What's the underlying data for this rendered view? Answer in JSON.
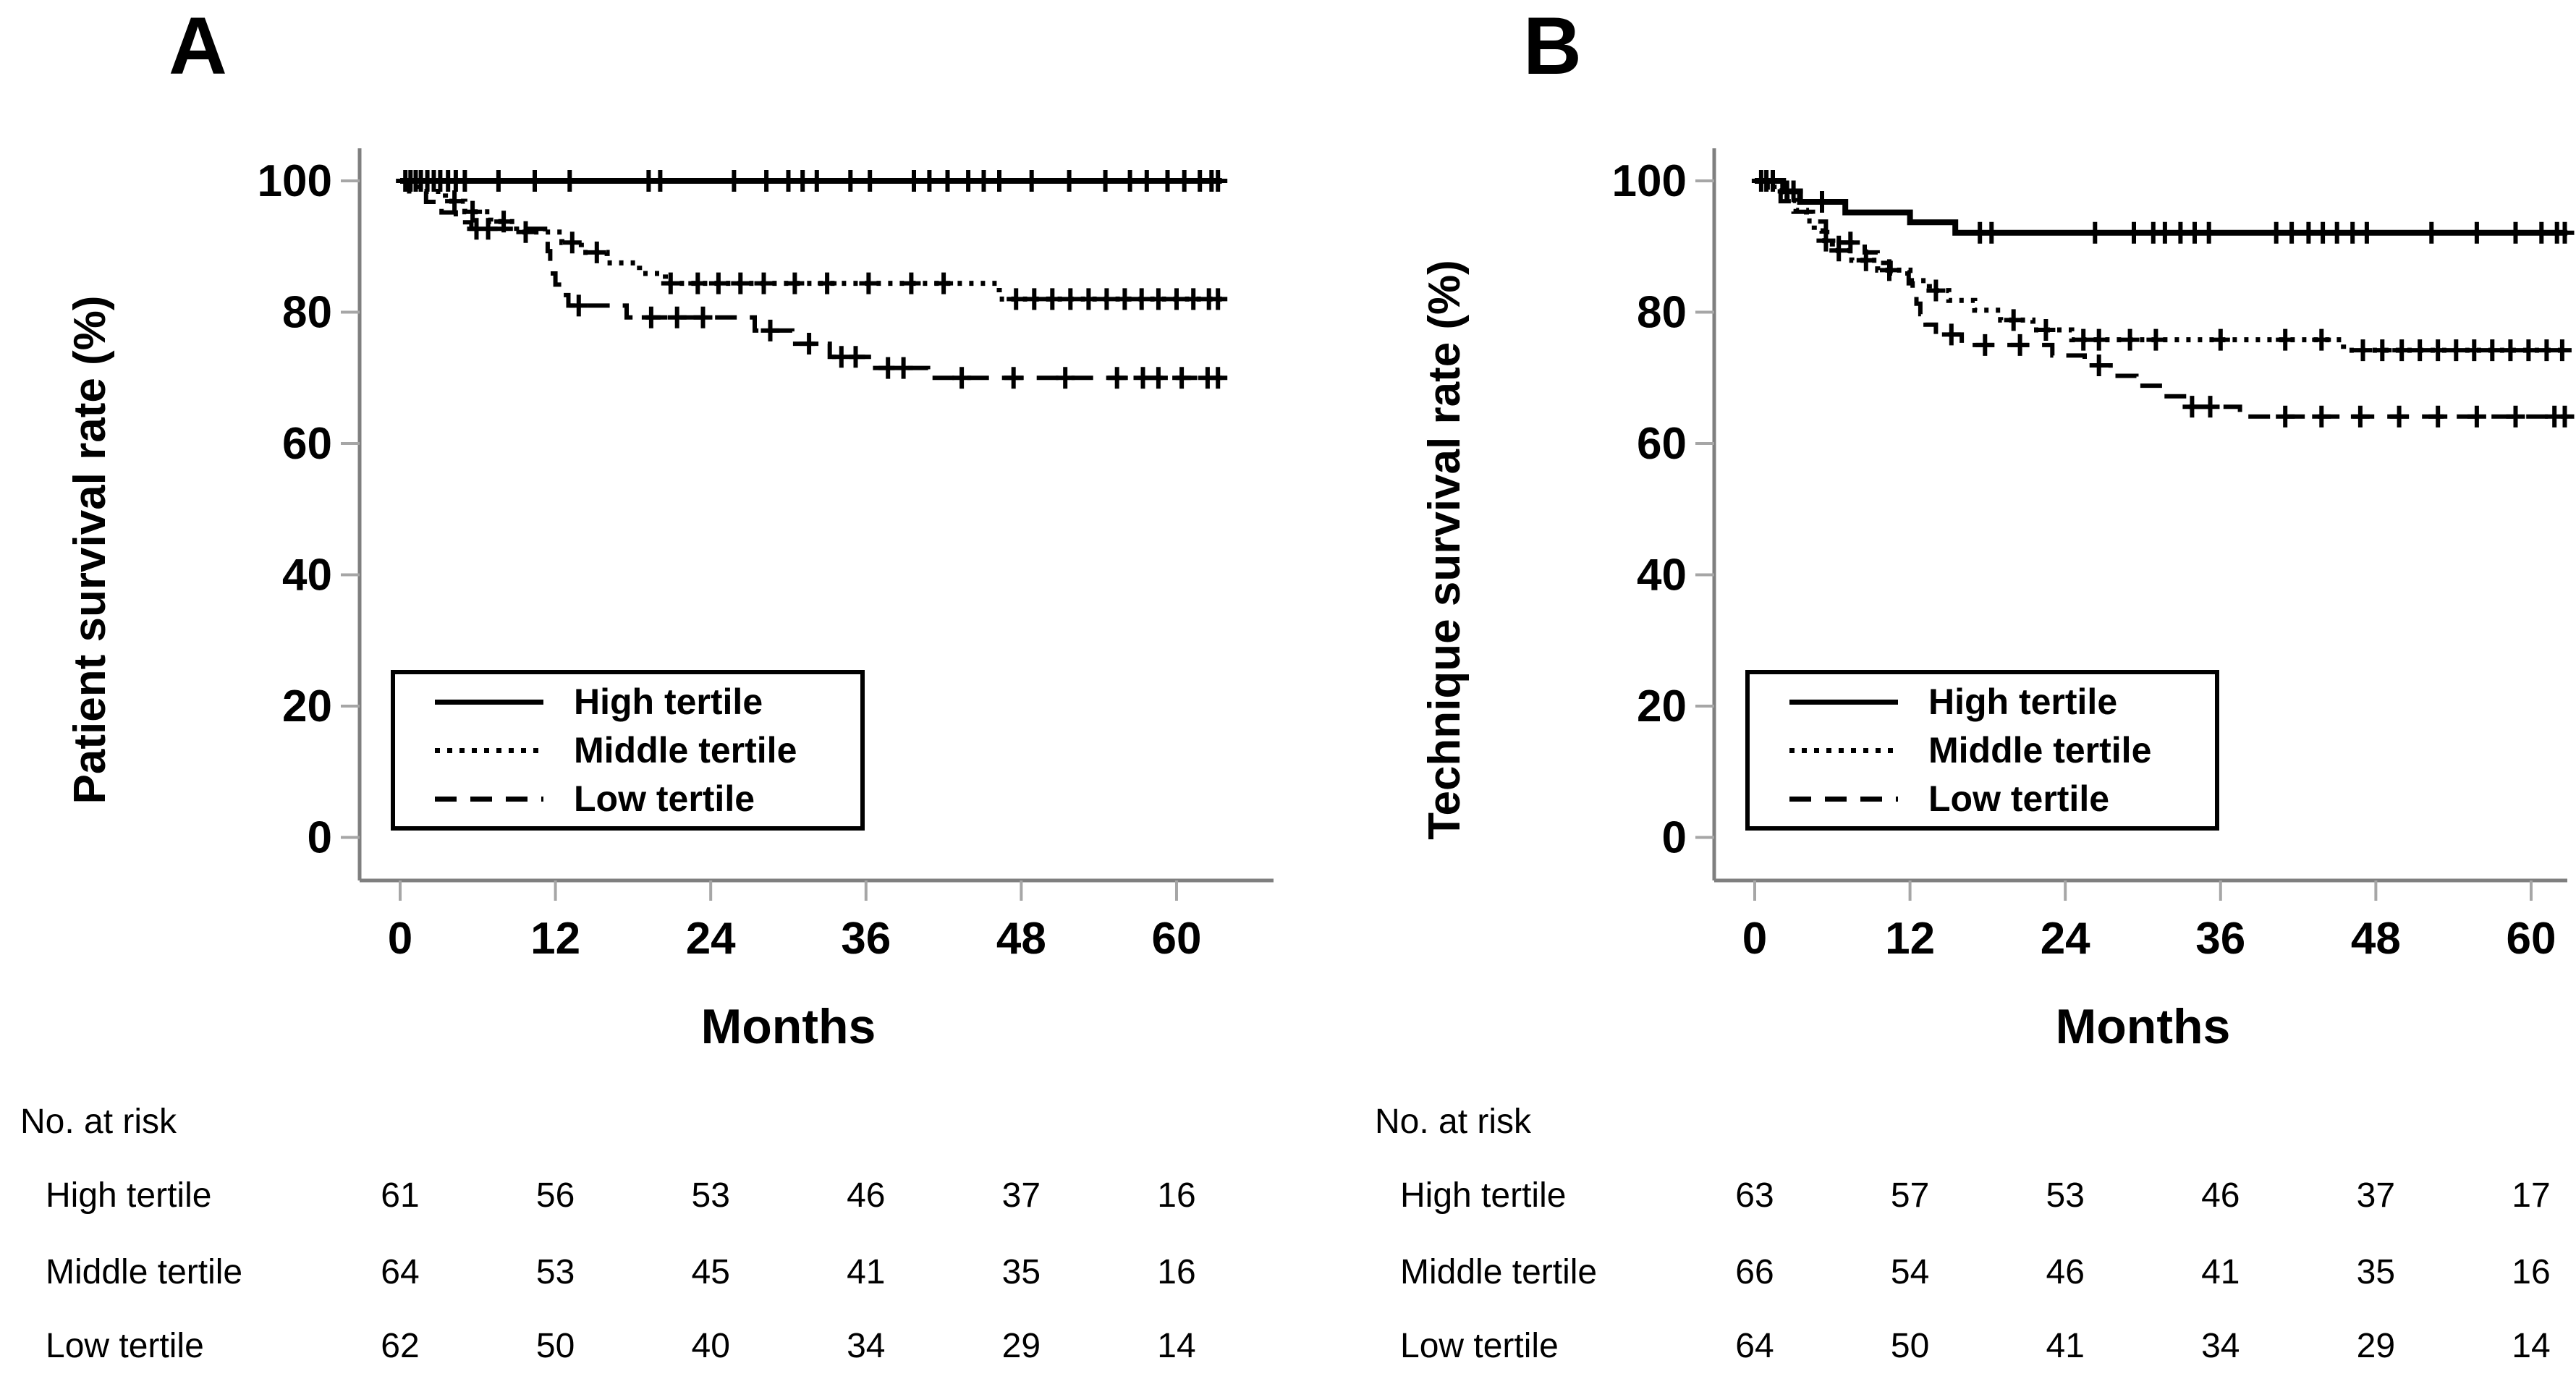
{
  "colors": {
    "background": "#ffffff",
    "curve": "#000000",
    "text": "#000000",
    "axis_line": "#7f7f7f",
    "tick_mark": "#a6a6a6"
  },
  "chart_data": [
    {
      "type": "line",
      "subtype": "kaplan-meier-step",
      "panel_label": "A",
      "ylabel": "Patient survival rate (%)",
      "xlabel": "Months",
      "xticks": [
        0,
        12,
        24,
        36,
        48,
        60
      ],
      "yticks": [
        100,
        80,
        60,
        40,
        20,
        0
      ],
      "xlim": [
        0,
        64
      ],
      "ylim": [
        0,
        100
      ],
      "grid": false,
      "legend_position": "lower-left",
      "legend": [
        {
          "label": "High tertile",
          "style": "solid"
        },
        {
          "label": "Middle tertile",
          "style": "dotted"
        },
        {
          "label": "Low tertile",
          "style": "dashed"
        }
      ],
      "series": [
        {
          "name": "High tertile",
          "style": "solid",
          "end_month": 63.5,
          "steps": [
            [
              0,
              100
            ]
          ],
          "censors": [
            0.4,
            0.8,
            1.2,
            1.6,
            2.1,
            2.6,
            3.1,
            3.7,
            4.3,
            5.0,
            7.6,
            10.4,
            13.1,
            19.2,
            20.1,
            25.8,
            28.3,
            30.0,
            31.1,
            32.2,
            34.8,
            36.3,
            39.7,
            40.9,
            42.3,
            43.9,
            45.1,
            46.3,
            48.8,
            51.7,
            54.5,
            56.4,
            57.7,
            59.3,
            60.6,
            61.8,
            62.7,
            63.2
          ]
        },
        {
          "name": "Middle tertile",
          "style": "dotted",
          "end_month": 63.5,
          "steps": [
            [
              0,
              100
            ],
            [
              1.5,
              98.4
            ],
            [
              3.5,
              96.9
            ],
            [
              5,
              95.3
            ],
            [
              7,
              93.8
            ],
            [
              9,
              92.2
            ],
            [
              12.5,
              90.6
            ],
            [
              14,
              89.1
            ],
            [
              16,
              87.5
            ],
            [
              18.5,
              85.9
            ],
            [
              20.5,
              84.4
            ],
            [
              46.3,
              82.0
            ]
          ],
          "censors": [
            4.2,
            5.6,
            8.0,
            9.7,
            13.3,
            15.2,
            20.9,
            23.0,
            24.6,
            26.3,
            28.1,
            30.5,
            33.0,
            36.2,
            39.5,
            42.0,
            47.6,
            49.0,
            50.4,
            51.8,
            53.2,
            54.6,
            56.0,
            57.3,
            58.6,
            60.0,
            61.3,
            62.5,
            63.2
          ]
        },
        {
          "name": "Low tertile",
          "style": "dashed",
          "end_month": 63.5,
          "steps": [
            [
              0,
              100
            ],
            [
              0.7,
              98.4
            ],
            [
              2,
              96.8
            ],
            [
              3.2,
              95.2
            ],
            [
              4.3,
              93.7
            ],
            [
              5.5,
              92.7
            ],
            [
              11.2,
              91.0
            ],
            [
              11.4,
              89.3
            ],
            [
              11.6,
              87.6
            ],
            [
              11.8,
              85.9
            ],
            [
              12.0,
              84.2
            ],
            [
              12.6,
              82.6
            ],
            [
              13.0,
              81.0
            ],
            [
              17.5,
              79.2
            ],
            [
              27.4,
              77.2
            ],
            [
              30.3,
              75.2
            ],
            [
              33.2,
              73.2
            ],
            [
              36.5,
              71.5
            ],
            [
              40.8,
              70.0
            ]
          ],
          "censors": [
            5.9,
            6.8,
            13.8,
            19.4,
            21.4,
            23.4,
            28.6,
            31.6,
            34.1,
            35.2,
            37.7,
            38.9,
            43.4,
            47.4,
            51.4,
            55.4,
            57.4,
            58.6,
            60.4,
            62.4,
            63.2
          ]
        }
      ],
      "risk_table": {
        "title": "No. at risk",
        "time_points": [
          0,
          12,
          24,
          36,
          48,
          60
        ],
        "rows": [
          {
            "label": "High tertile",
            "values": [
              "61",
              "56",
              "53",
              "46",
              "37",
              "16"
            ]
          },
          {
            "label": "Middle tertile",
            "values": [
              "64",
              "53",
              "45",
              "41",
              "35",
              "16"
            ]
          },
          {
            "label": "Low tertile",
            "values": [
              "62",
              "50",
              "40",
              "34",
              "29",
              "14"
            ]
          }
        ]
      }
    },
    {
      "type": "line",
      "subtype": "kaplan-meier-step",
      "panel_label": "B",
      "ylabel": "Technique survival rate (%)",
      "xlabel": "Months",
      "xticks": [
        0,
        12,
        24,
        36,
        48,
        60
      ],
      "yticks": [
        100,
        80,
        60,
        40,
        20,
        0
      ],
      "xlim": [
        0,
        63
      ],
      "ylim": [
        0,
        100
      ],
      "grid": false,
      "legend_position": "lower-left",
      "legend": [
        {
          "label": "High tertile",
          "style": "solid"
        },
        {
          "label": "Middle tertile",
          "style": "dotted"
        },
        {
          "label": "Low tertile",
          "style": "dashed"
        }
      ],
      "series": [
        {
          "name": "High tertile",
          "style": "solid",
          "end_month": 62.8,
          "steps": [
            [
              0,
              100
            ],
            [
              2.2,
              98.4
            ],
            [
              3.5,
              96.8
            ],
            [
              7,
              95.2
            ],
            [
              12,
              93.7
            ],
            [
              15.5,
              92.1
            ]
          ],
          "censors": [
            0.5,
            0.9,
            1.4,
            2.5,
            3.0,
            5.2,
            17.4,
            18.3,
            26.3,
            29.3,
            30.8,
            31.7,
            32.9,
            34.0,
            35.1,
            40.3,
            41.5,
            42.8,
            43.9,
            45.0,
            46.2,
            47.3,
            52.3,
            55.8,
            58.8,
            60.8,
            62.0,
            62.6
          ]
        },
        {
          "name": "Middle tertile",
          "style": "dotted",
          "end_month": 62.8,
          "steps": [
            [
              0,
              100
            ],
            [
              1.5,
              98.5
            ],
            [
              2.5,
              97.0
            ],
            [
              3.2,
              95.5
            ],
            [
              4,
              93.9
            ],
            [
              4.6,
              92.4
            ],
            [
              5.2,
              90.9
            ],
            [
              6,
              89.4
            ],
            [
              7.5,
              87.9
            ],
            [
              9.5,
              86.4
            ],
            [
              12,
              84.8
            ],
            [
              13.5,
              83.3
            ],
            [
              15,
              81.8
            ],
            [
              17,
              80.3
            ],
            [
              19,
              78.8
            ],
            [
              21.5,
              77.3
            ],
            [
              24.5,
              75.8
            ],
            [
              45.5,
              74.2
            ]
          ],
          "censors": [
            5.5,
            6.5,
            8.6,
            10.4,
            14.0,
            20.0,
            22.5,
            25.4,
            26.6,
            29.0,
            31.0,
            36.0,
            41.0,
            43.8,
            47.0,
            48.5,
            50.0,
            51.4,
            52.8,
            54.2,
            55.6,
            57.0,
            58.4,
            59.8,
            61.2,
            62.4
          ]
        },
        {
          "name": "Low tertile",
          "style": "dashed",
          "end_month": 62.8,
          "steps": [
            [
              0,
              100
            ],
            [
              1,
              98.4
            ],
            [
              2,
              96.9
            ],
            [
              3,
              95.3
            ],
            [
              4.5,
              93.8
            ],
            [
              5.5,
              92.2
            ],
            [
              6.5,
              90.6
            ],
            [
              8.5,
              89.1
            ],
            [
              9.5,
              87.5
            ],
            [
              10.5,
              85.9
            ],
            [
              11.9,
              84.4
            ],
            [
              12.2,
              82.8
            ],
            [
              12.5,
              81.3
            ],
            [
              12.8,
              79.7
            ],
            [
              13.2,
              78.1
            ],
            [
              14,
              76.6
            ],
            [
              16,
              75.0
            ],
            [
              23,
              73.4
            ],
            [
              25.5,
              71.9
            ],
            [
              27.5,
              70.3
            ],
            [
              29.5,
              68.8
            ],
            [
              31.5,
              67.2
            ],
            [
              33.5,
              65.6
            ],
            [
              37.5,
              64.1
            ]
          ],
          "censors": [
            7.4,
            15.2,
            17.8,
            20.5,
            26.6,
            33.8,
            35.2,
            41.0,
            43.8,
            46.8,
            49.8,
            52.8,
            55.8,
            58.8,
            61.8,
            62.6
          ]
        }
      ],
      "risk_table": {
        "title": "No. at risk",
        "time_points": [
          0,
          12,
          24,
          36,
          48,
          60
        ],
        "rows": [
          {
            "label": "High tertile",
            "values": [
              "63",
              "57",
              "53",
              "46",
              "37",
              "17"
            ]
          },
          {
            "label": "Middle tertile",
            "values": [
              "66",
              "54",
              "46",
              "41",
              "35",
              "16"
            ]
          },
          {
            "label": "Low tertile",
            "values": [
              "64",
              "50",
              "41",
              "34",
              "29",
              "14"
            ]
          }
        ]
      }
    }
  ]
}
